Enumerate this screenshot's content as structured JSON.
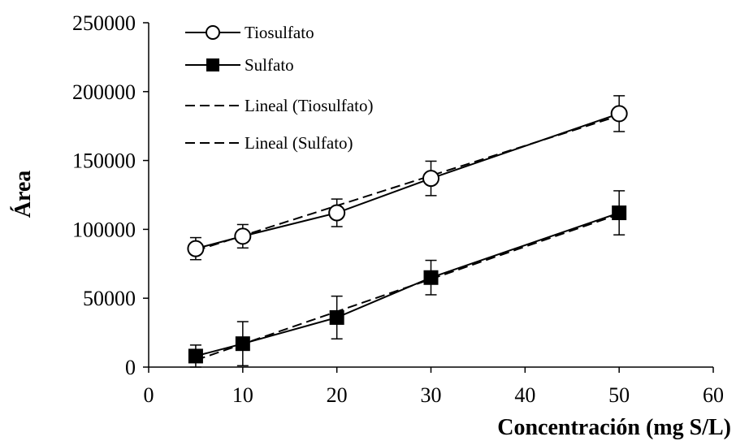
{
  "chart_data": {
    "type": "line",
    "xlabel": "Concentración (mg S/L)",
    "ylabel": "Área",
    "xlim": [
      0,
      60
    ],
    "ylim": [
      0,
      250000
    ],
    "xticks": [
      0,
      10,
      20,
      30,
      40,
      50,
      60
    ],
    "yticks": [
      0,
      50000,
      100000,
      150000,
      200000,
      250000
    ],
    "x_tick_labels": [
      "0",
      "10",
      "20",
      "30",
      "40",
      "50",
      "60"
    ],
    "y_tick_labels": [
      "0",
      "50000",
      "100000",
      "150000",
      "200000",
      "250000"
    ],
    "grid": false,
    "legend_position": "top-left",
    "series": [
      {
        "name": "Tiosulfato",
        "marker": "open-circle",
        "x": [
          5,
          10,
          20,
          30,
          50
        ],
        "y": [
          86000,
          95000,
          112000,
          137000,
          184000
        ],
        "error": [
          8000,
          8500,
          10000,
          12500,
          13000
        ]
      },
      {
        "name": "Sulfato",
        "marker": "filled-square",
        "x": [
          5,
          10,
          20,
          30,
          50
        ],
        "y": [
          8000,
          17000,
          36000,
          65000,
          112000
        ],
        "error": [
          8000,
          16000,
          15500,
          12500,
          16000
        ]
      }
    ],
    "trendlines": [
      {
        "name": "Lineal (Tiosulfato)",
        "style": "dashed",
        "x": [
          5,
          50
        ],
        "y": [
          84500,
          182500
        ]
      },
      {
        "name": "Lineal (Sulfato)",
        "style": "dashed",
        "x": [
          5,
          50
        ],
        "y": [
          5000,
          111000
        ]
      }
    ],
    "colors": {
      "line": "#000000",
      "marker_fill_open": "#ffffff",
      "marker_fill_solid": "#000000"
    }
  }
}
